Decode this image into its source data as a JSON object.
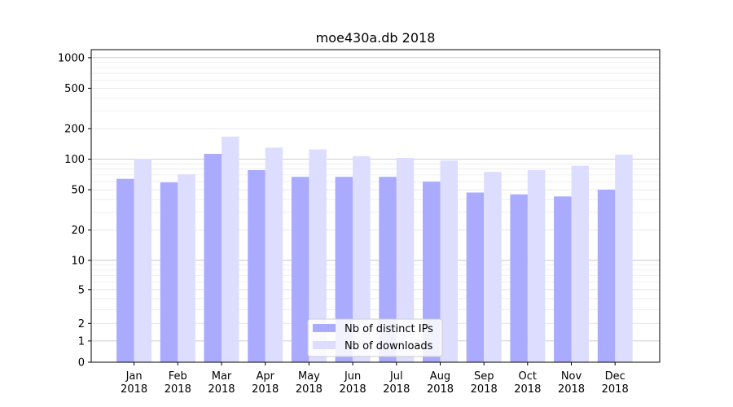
{
  "chart_data": {
    "type": "bar",
    "title": "moe430a.db 2018",
    "xlabel": "",
    "ylabel": "",
    "y_scale": "symlog",
    "ylim": [
      0,
      1200
    ],
    "y_ticks": [
      0,
      1,
      2,
      5,
      10,
      20,
      50,
      100,
      200,
      500,
      1000
    ],
    "y_tick_labels": [
      "0",
      "1",
      "2",
      "5",
      "10",
      "20",
      "50",
      "100",
      "200",
      "500",
      "1000"
    ],
    "categories": [
      "Jan\n2018",
      "Feb\n2018",
      "Mar\n2018",
      "Apr\n2018",
      "May\n2018",
      "Jun\n2018",
      "Jul\n2018",
      "Aug\n2018",
      "Sep\n2018",
      "Oct\n2018",
      "Nov\n2018",
      "Dec\n2018"
    ],
    "category_lines": [
      [
        "Jan",
        "2018"
      ],
      [
        "Feb",
        "2018"
      ],
      [
        "Mar",
        "2018"
      ],
      [
        "Apr",
        "2018"
      ],
      [
        "May",
        "2018"
      ],
      [
        "Jun",
        "2018"
      ],
      [
        "Jul",
        "2018"
      ],
      [
        "Aug",
        "2018"
      ],
      [
        "Sep",
        "2018"
      ],
      [
        "Oct",
        "2018"
      ],
      [
        "Nov",
        "2018"
      ],
      [
        "Dec",
        "2018"
      ]
    ],
    "series": [
      {
        "name": "Nb of distinct IPs",
        "color": "#aaaaff",
        "values": [
          64,
          59,
          113,
          78,
          67,
          67,
          67,
          60,
          47,
          45,
          43,
          50
        ]
      },
      {
        "name": "Nb of downloads",
        "color": "#ddddff",
        "values": [
          101,
          71,
          167,
          130,
          125,
          107,
          103,
          97,
          75,
          78,
          86,
          111
        ]
      }
    ],
    "grid": true,
    "legend_position": "bottom-center"
  }
}
